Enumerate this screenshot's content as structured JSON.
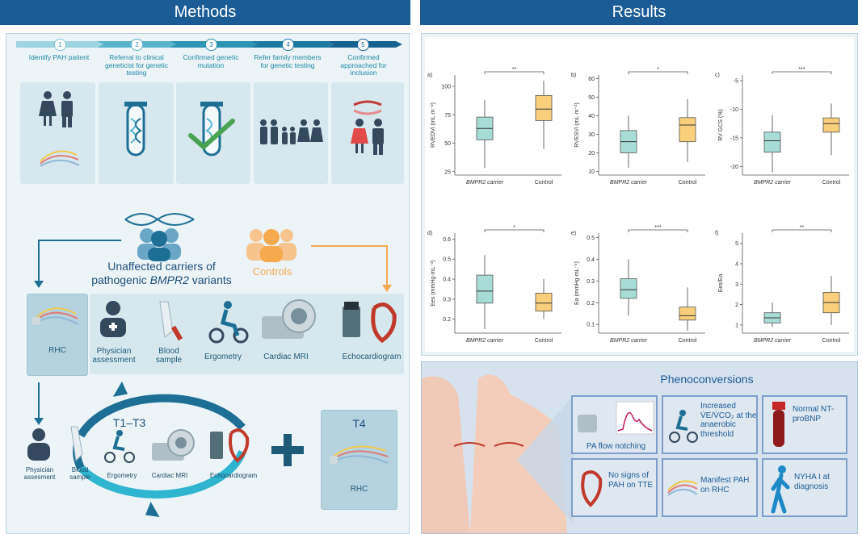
{
  "headers": {
    "methods": "Methods",
    "results": "Results"
  },
  "steps": [
    {
      "num": "1",
      "label": "Identify PAH patient"
    },
    {
      "num": "2",
      "label": "Referral to clinical geneticist for genetic testing"
    },
    {
      "num": "3",
      "label": "Confirmed genetic mutation"
    },
    {
      "num": "4",
      "label": "Refer family members for genetic testing"
    },
    {
      "num": "5",
      "label": "Confirmed approached for inclusion"
    }
  ],
  "groups": {
    "carriers_line1": "Unaffected carriers of",
    "carriers_line2a": "pathogenic ",
    "carriers_gene": "BMPR2",
    "carriers_line2b": " variants",
    "controls": "Controls"
  },
  "baseline": {
    "rhc": "RHC",
    "tests": [
      {
        "label": "Physician assessment"
      },
      {
        "label": "Blood sample"
      },
      {
        "label": "Ergometry"
      },
      {
        "label": "Cardiac MRI"
      },
      {
        "label": "Echocardiogram"
      }
    ]
  },
  "followup": {
    "cycle": "T1–T3",
    "t4": "T4",
    "t4_rhc": "RHC",
    "physician": "Physician assesment",
    "blood": "Blood sample",
    "ergometry": "Ergometry",
    "mri": "Cardiac MRI",
    "echo": "Echocardiogram"
  },
  "colors": {
    "navy": "#1b5c97",
    "teal": "#1d7d8f",
    "carrier_box": "#a8dcd6",
    "control_box": "#f9cf7c",
    "controls_orange": "#f7a94e"
  },
  "chart_data": [
    {
      "type": "box",
      "panel": "a)",
      "ylabel": "RVEDVi (mL·m⁻²)",
      "categories": [
        "BMPR2 carrier",
        "Control"
      ],
      "yticks": [
        25,
        50,
        75,
        100
      ],
      "ylim": [
        22,
        110
      ],
      "significance": "**",
      "boxes": [
        {
          "whislo": 28,
          "q1": 53,
          "med": 63,
          "q3": 73,
          "whishi": 88
        },
        {
          "whislo": 45,
          "q1": 70,
          "med": 80,
          "q3": 92,
          "whishi": 105
        }
      ]
    },
    {
      "type": "box",
      "panel": "b)",
      "ylabel": "RVESVi (mL·m⁻²)",
      "categories": [
        "BMPR2 carrier",
        "Control"
      ],
      "yticks": [
        10,
        20,
        30,
        40,
        50,
        60
      ],
      "ylim": [
        8,
        62
      ],
      "significance": "*",
      "boxes": [
        {
          "whislo": 12,
          "q1": 20,
          "med": 26,
          "q3": 32,
          "whishi": 40
        },
        {
          "whislo": 15,
          "q1": 26,
          "med": 35,
          "q3": 39,
          "whishi": 49
        }
      ]
    },
    {
      "type": "box",
      "panel": "c)",
      "ylabel": "RV GCS (%)",
      "categories": [
        "BMPR2 carrier",
        "Control"
      ],
      "yticks": [
        -20,
        -15,
        -10,
        -5
      ],
      "ylim": [
        -21.5,
        -4
      ],
      "significance": "***",
      "boxes": [
        {
          "whislo": -21,
          "q1": -17.5,
          "med": -15.5,
          "q3": -14,
          "whishi": -11
        },
        {
          "whislo": -18,
          "q1": -14,
          "med": -12.5,
          "q3": -11.5,
          "whishi": -9
        }
      ]
    },
    {
      "type": "box",
      "panel": "d)",
      "ylabel": "Ees (mmHg·mL⁻¹)",
      "categories": [
        "BMPR2 carrier",
        "Control"
      ],
      "yticks": [
        0.2,
        0.3,
        0.4,
        0.5,
        0.6
      ],
      "ylim": [
        0.13,
        0.63
      ],
      "significance": "*",
      "boxes": [
        {
          "whislo": 0.15,
          "q1": 0.28,
          "med": 0.34,
          "q3": 0.42,
          "whishi": 0.52
        },
        {
          "whislo": 0.2,
          "q1": 0.24,
          "med": 0.28,
          "q3": 0.33,
          "whishi": 0.4
        }
      ]
    },
    {
      "type": "box",
      "panel": "e)",
      "ylabel": "Ea (mmHg·mL⁻¹)",
      "categories": [
        "BMPR2 carrier",
        "Control"
      ],
      "yticks": [
        0.1,
        0.2,
        0.3,
        0.4,
        0.5
      ],
      "ylim": [
        0.06,
        0.52
      ],
      "significance": "***",
      "boxes": [
        {
          "whislo": 0.14,
          "q1": 0.22,
          "med": 0.26,
          "q3": 0.31,
          "whishi": 0.4
        },
        {
          "whislo": 0.07,
          "q1": 0.12,
          "med": 0.14,
          "q3": 0.18,
          "whishi": 0.27
        }
      ]
    },
    {
      "type": "box",
      "panel": "f)",
      "ylabel": "Ees/Ea",
      "categories": [
        "BMPR2 carrier",
        "Control"
      ],
      "yticks": [
        1,
        2,
        3,
        4,
        5
      ],
      "ylim": [
        0.6,
        5.5
      ],
      "significance": "**",
      "boxes": [
        {
          "whislo": 0.9,
          "q1": 1.1,
          "med": 1.35,
          "q3": 1.6,
          "whishi": 2.1
        },
        {
          "whislo": 1.0,
          "q1": 1.6,
          "med": 2.1,
          "q3": 2.6,
          "whishi": 3.4
        }
      ]
    }
  ],
  "phenoconversions": {
    "title": "Phenoconversions",
    "items": [
      {
        "id": "pa-flow",
        "text": "PA flow notching"
      },
      {
        "id": "vevco2",
        "pre": "Increased",
        "mid": "V̇E/V̇CO₂ at the",
        "post": "anaerobic threshold"
      },
      {
        "id": "ntprobnp",
        "text": "Normal NT-proBNP"
      },
      {
        "id": "tte",
        "text": "No signs of PAH on TTE"
      },
      {
        "id": "rhc",
        "text": "Manifest PAH on RHC"
      },
      {
        "id": "nyha",
        "text": "NYHA I at diagnosis"
      }
    ]
  }
}
